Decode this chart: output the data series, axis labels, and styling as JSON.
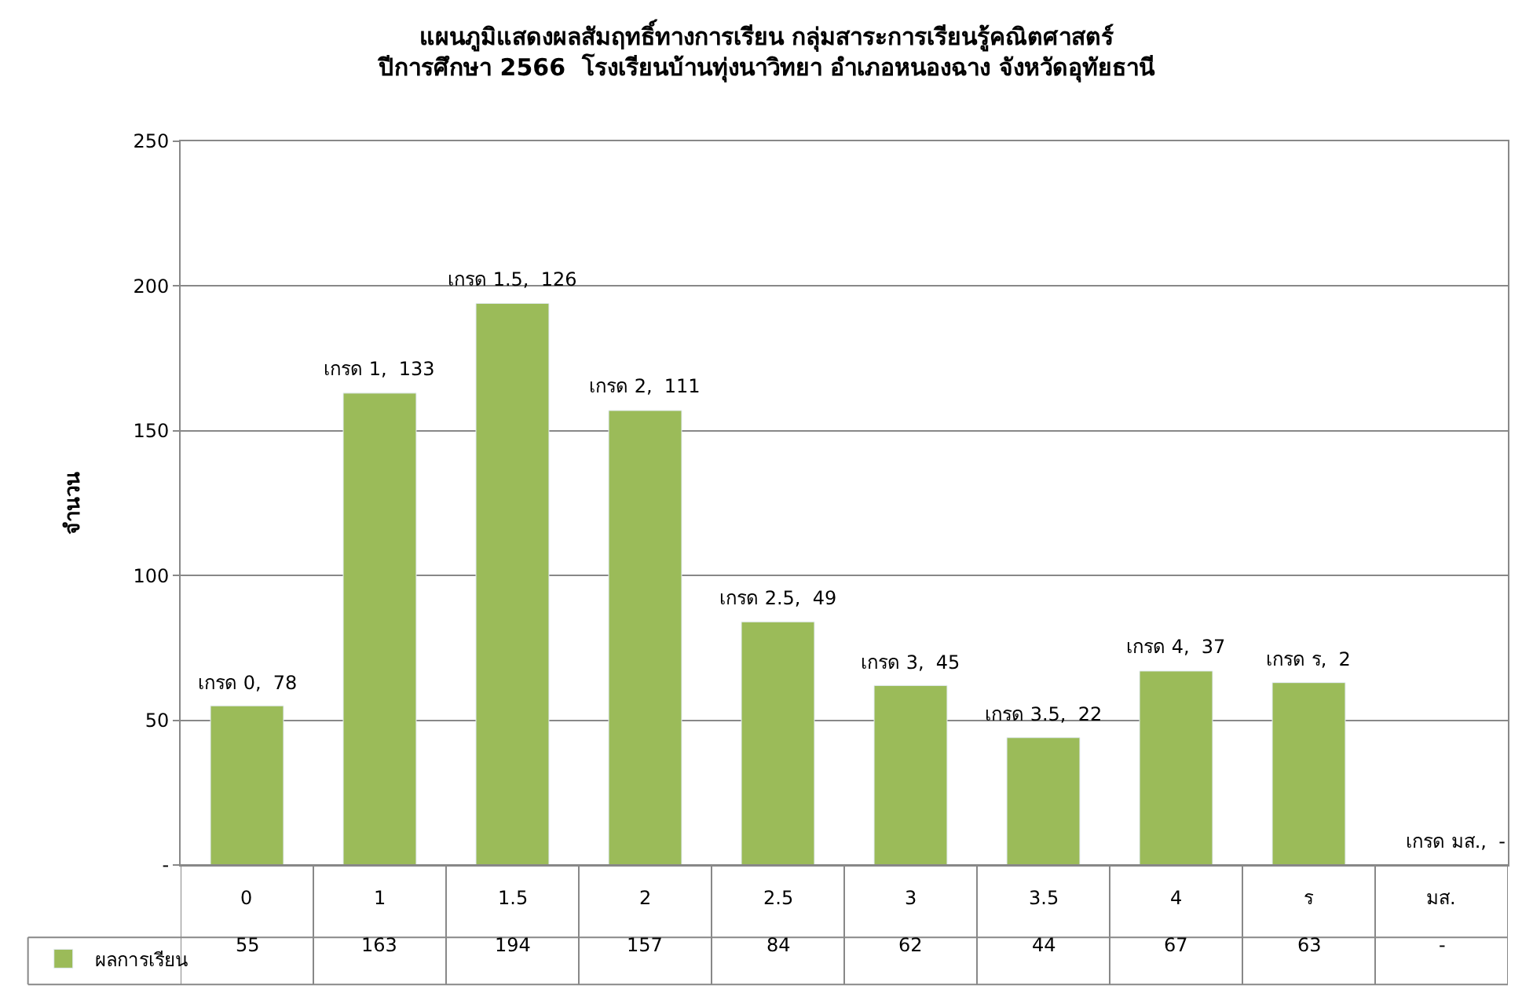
{
  "chart_data": {
    "type": "bar",
    "title": "แผนภูมิแสดงผลสัมฤทธิ์ทางการเรียน กลุ่มสาระการเรียนรู้คณิตศาสตร์\nปีการศึกษา 2566  โรงเรียนบ้านทุ่งนาวิทยา อำเภอหนองฉาง จังหวัดอุทัยธานี",
    "ylabel": "จำนวน",
    "categories": [
      "0",
      "1",
      "1.5",
      "2",
      "2.5",
      "3",
      "3.5",
      "4",
      "ร",
      "มส."
    ],
    "series": [
      {
        "name": "ผลการเรียน",
        "color": "#9bbb59",
        "values": [
          55,
          163,
          194,
          157,
          84,
          62,
          44,
          67,
          63,
          null
        ],
        "value_labels": [
          "55",
          "163",
          "194",
          "157",
          "84",
          "62",
          "44",
          "67",
          "63",
          "-"
        ]
      }
    ],
    "ylim": [
      0,
      250
    ],
    "yticks": [
      {
        "value": 0,
        "label": "-"
      },
      50,
      100,
      150,
      200,
      250
    ],
    "grid": "y",
    "legend": "bottom left",
    "annotations": [
      {
        "text": "เกรด 0,  78",
        "x": "0",
        "y": 55
      },
      {
        "text": "เกรด 1,  133",
        "x": "1",
        "y": 163
      },
      {
        "text": "เกรด 1.5,  126",
        "x": "1.5",
        "y": 194
      },
      {
        "text": "เกรด 2,  111",
        "x": "2",
        "y": 157
      },
      {
        "text": "เกรด 2.5,  49",
        "x": "2.5",
        "y": 84
      },
      {
        "text": "เกรด 3,  45",
        "x": "3",
        "y": 62
      },
      {
        "text": "เกรด 3.5,  22",
        "x": "3.5",
        "y": 44
      },
      {
        "text": "เกรด 4,  37",
        "x": "4",
        "y": 67
      },
      {
        "text": "เกรด ร,  2",
        "x": "ร",
        "y": 63
      },
      "เกรด มส.,  -"
    ]
  }
}
